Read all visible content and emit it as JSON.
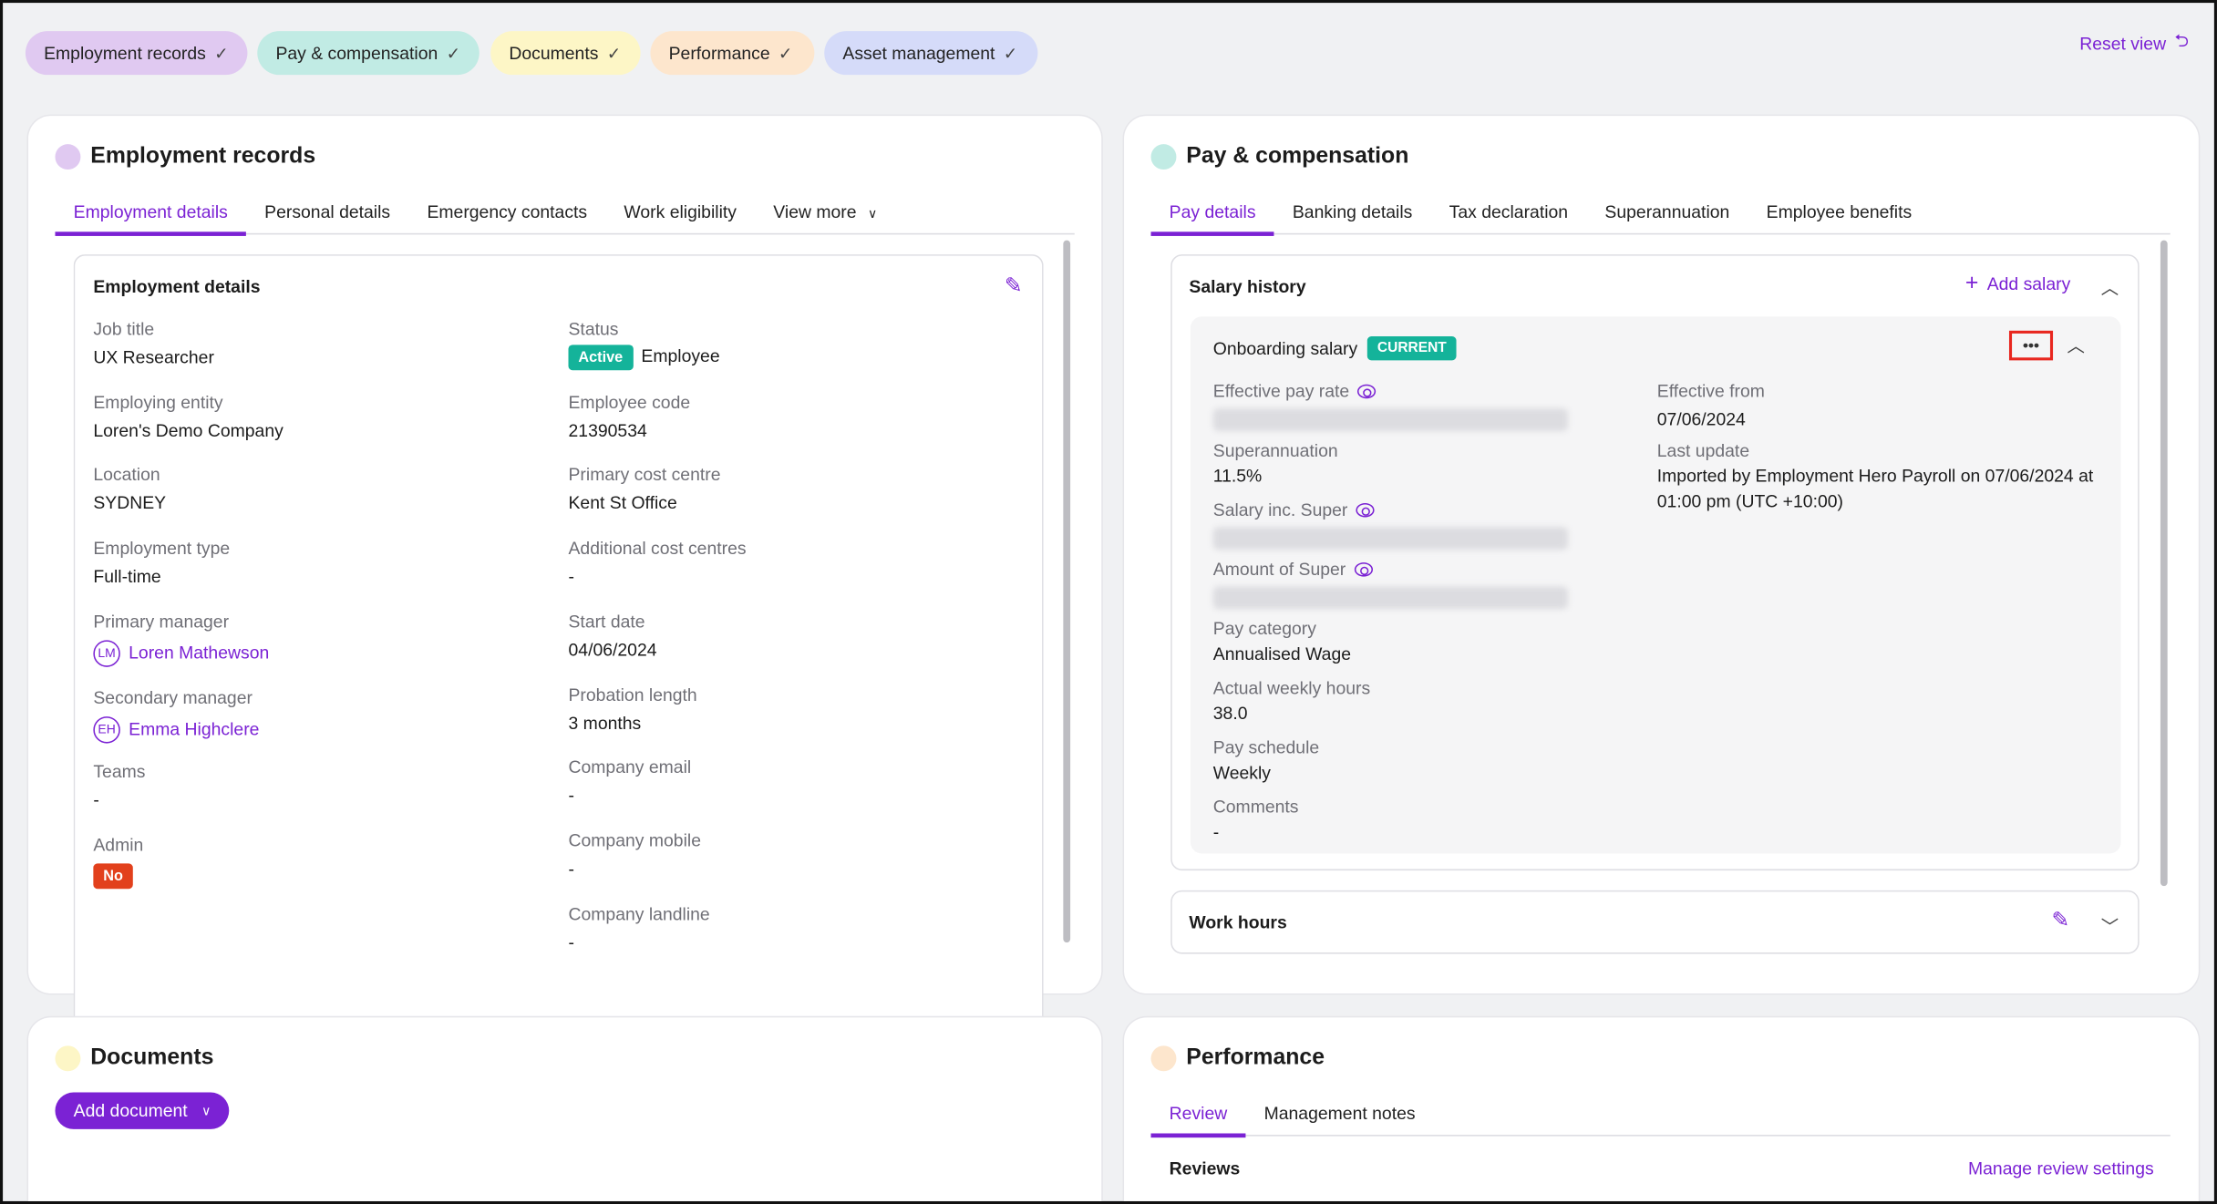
{
  "filters": [
    {
      "label": "Employment records",
      "color": "#e0c9f1"
    },
    {
      "label": "Pay & compensation",
      "color": "#c1ebe4"
    },
    {
      "label": "Documents",
      "color": "#fdf6c6"
    },
    {
      "label": "Performance",
      "color": "#fde6cd"
    },
    {
      "label": "Asset management",
      "color": "#d5dbf9"
    }
  ],
  "reset_view": "Reset view",
  "employment": {
    "title": "Employment records",
    "dot_color": "#e0c9f1",
    "tabs": [
      "Employment details",
      "Personal details",
      "Emergency contacts",
      "Work eligibility",
      "View more"
    ],
    "section_title": "Employment details",
    "left": [
      {
        "label": "Job title",
        "value": "UX Researcher"
      },
      {
        "label": "Employing entity",
        "value": "Loren's Demo Company"
      },
      {
        "label": "Location",
        "value": "SYDNEY"
      },
      {
        "label": "Employment type",
        "value": "Full-time"
      },
      {
        "label": "Primary manager",
        "value": "Loren Mathewson",
        "initials": "LM"
      },
      {
        "label": "Secondary manager",
        "value": "Emma Highclere",
        "initials": "EH"
      },
      {
        "label": "Teams",
        "value": "-"
      },
      {
        "label": "Admin",
        "value": "No"
      }
    ],
    "status": {
      "label": "Status",
      "badge": "Active",
      "value": "Employee"
    },
    "right": [
      {
        "label": "Employee code",
        "value": "21390534"
      },
      {
        "label": "Primary cost centre",
        "value": "Kent St Office"
      },
      {
        "label": "Additional cost centres",
        "value": "-"
      },
      {
        "label": "Start date",
        "value": "04/06/2024"
      },
      {
        "label": "Probation length",
        "value": "3 months"
      },
      {
        "label": "Company email",
        "value": "-"
      },
      {
        "label": "Company mobile",
        "value": "-"
      },
      {
        "label": "Company landline",
        "value": "-"
      }
    ]
  },
  "pay": {
    "title": "Pay & compensation",
    "dot_color": "#c1ebe4",
    "tabs": [
      "Pay details",
      "Banking details",
      "Tax declaration",
      "Superannuation",
      "Employee benefits"
    ],
    "salary_history": "Salary history",
    "add_salary": "Add salary",
    "salary_name": "Onboarding salary",
    "current_badge": "CURRENT",
    "left": [
      {
        "label": "Effective pay rate",
        "hidden": true
      },
      {
        "label": "Superannuation",
        "value": "11.5%"
      },
      {
        "label": "Salary inc. Super",
        "hidden": true
      },
      {
        "label": "Amount of Super",
        "hidden": true
      },
      {
        "label": "Pay category",
        "value": "Annualised Wage"
      },
      {
        "label": "Actual weekly hours",
        "value": "38.0"
      },
      {
        "label": "Pay schedule",
        "value": "Weekly"
      },
      {
        "label": "Comments",
        "value": "-"
      }
    ],
    "effective_from": {
      "label": "Effective from",
      "value": "07/06/2024"
    },
    "last_update": {
      "label": "Last update",
      "value": "Imported by Employment Hero Payroll on 07/06/2024 at 01:00 pm (UTC +10:00)"
    },
    "work_hours": "Work hours"
  },
  "documents": {
    "title": "Documents",
    "dot_color": "#fdf6c6",
    "add_document": "Add document"
  },
  "performance": {
    "title": "Performance",
    "dot_color": "#fde6cd",
    "tabs": [
      "Review",
      "Management notes"
    ],
    "reviews": "Reviews",
    "manage": "Manage review settings"
  },
  "colors": {
    "accent": "#7b22d4",
    "active": "#14b39a",
    "no": "#e2401c",
    "highlight": "#e8271f"
  }
}
